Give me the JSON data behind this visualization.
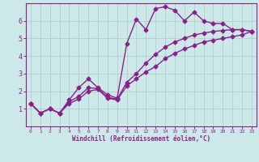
{
  "xlabel": "Windchill (Refroidissement éolien,°C)",
  "xlim": [
    -0.5,
    23.5
  ],
  "ylim": [
    0,
    7
  ],
  "xticks": [
    0,
    1,
    2,
    3,
    4,
    5,
    6,
    7,
    8,
    9,
    10,
    11,
    12,
    13,
    14,
    15,
    16,
    17,
    18,
    19,
    20,
    21,
    22,
    23
  ],
  "yticks": [
    1,
    2,
    3,
    4,
    5,
    6
  ],
  "background_color": "#cce8e8",
  "grid_color": "#aacccc",
  "line_color": "#882288",
  "line1_x": [
    0,
    1,
    2,
    3,
    4,
    5,
    6,
    7,
    8,
    9,
    10,
    11,
    12,
    13,
    14,
    15,
    16,
    17,
    18,
    19,
    20,
    21,
    22,
    23
  ],
  "line1_y": [
    1.3,
    0.75,
    1.0,
    0.75,
    1.5,
    2.2,
    2.7,
    2.2,
    1.8,
    1.6,
    4.7,
    6.1,
    5.5,
    6.7,
    6.8,
    6.6,
    6.0,
    6.5,
    6.0,
    5.85,
    5.85,
    5.5,
    5.5,
    5.4
  ],
  "line2_x": [
    0,
    1,
    2,
    3,
    4,
    5,
    6,
    7,
    8,
    9,
    10,
    11,
    12,
    13,
    14,
    15,
    16,
    17,
    18,
    19,
    20,
    21,
    22,
    23
  ],
  "line2_y": [
    1.3,
    0.75,
    1.0,
    0.75,
    1.4,
    1.7,
    2.2,
    2.15,
    1.65,
    1.55,
    2.5,
    3.0,
    3.6,
    4.1,
    4.5,
    4.8,
    5.0,
    5.2,
    5.3,
    5.4,
    5.45,
    5.5,
    5.5,
    5.4
  ],
  "line3_x": [
    0,
    1,
    2,
    3,
    4,
    5,
    6,
    7,
    8,
    9,
    10,
    11,
    12,
    13,
    14,
    15,
    16,
    17,
    18,
    19,
    20,
    21,
    22,
    23
  ],
  "line3_y": [
    1.3,
    0.75,
    1.0,
    0.75,
    1.3,
    1.55,
    2.0,
    2.1,
    1.6,
    1.5,
    2.3,
    2.7,
    3.1,
    3.4,
    3.85,
    4.15,
    4.4,
    4.6,
    4.8,
    4.9,
    5.0,
    5.1,
    5.2,
    5.4
  ],
  "marker": "D",
  "marker_size": 2.5,
  "line_width": 1.0
}
